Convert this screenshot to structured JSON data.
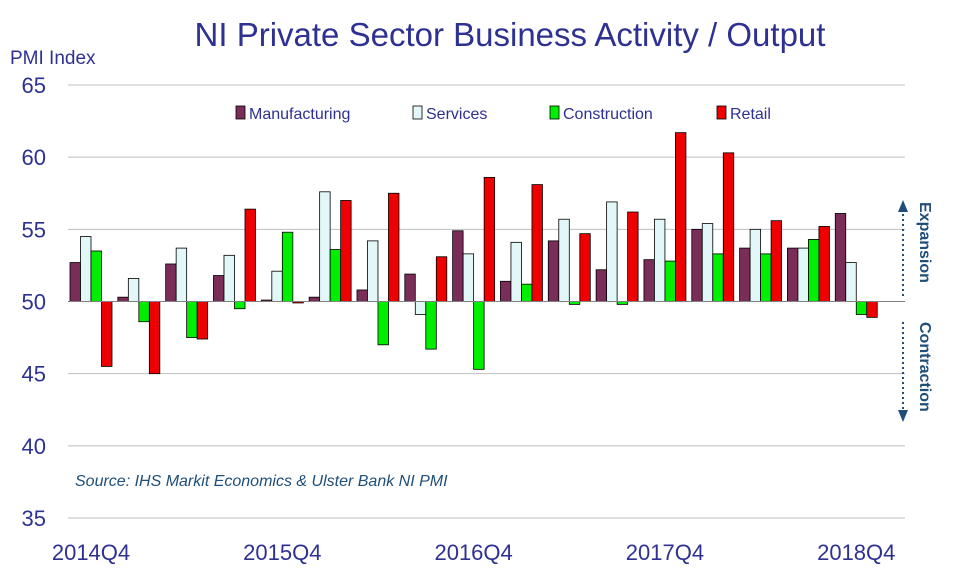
{
  "chart_data": {
    "type": "bar",
    "title": "NI Private Sector Business Activity / Output",
    "ylabel": "PMI Index",
    "ylim": [
      35,
      65
    ],
    "yticks": [
      35,
      40,
      45,
      50,
      55,
      60,
      65
    ],
    "baseline": 50,
    "categories": [
      "2014Q4",
      "2015Q1",
      "2015Q2",
      "2015Q3",
      "2015Q4",
      "2016Q1",
      "2016Q2",
      "2016Q3",
      "2016Q4",
      "2017Q1",
      "2017Q2",
      "2017Q3",
      "2017Q4",
      "2018Q1",
      "2018Q2",
      "2018Q3",
      "2018Q4"
    ],
    "x_tick_labels": [
      "2014Q4",
      "2015Q4",
      "2016Q4",
      "2017Q4",
      "2018Q4"
    ],
    "series": [
      {
        "name": "Manufacturing",
        "color": "#7b2d5a",
        "values": [
          52.7,
          50.3,
          52.6,
          51.8,
          50.1,
          50.3,
          50.8,
          51.9,
          54.9,
          51.4,
          54.2,
          52.2,
          52.9,
          55.0,
          53.7,
          53.7,
          56.1
        ]
      },
      {
        "name": "Services",
        "color": "#e2f7f7",
        "values": [
          54.5,
          51.6,
          53.7,
          53.2,
          52.1,
          57.6,
          54.2,
          49.1,
          53.3,
          54.1,
          55.7,
          56.9,
          55.7,
          55.4,
          55.0,
          53.7,
          52.7
        ]
      },
      {
        "name": "Construction",
        "color": "#00ee00",
        "values": [
          53.5,
          48.6,
          47.5,
          49.5,
          54.8,
          53.6,
          47.0,
          46.7,
          45.3,
          51.2,
          49.8,
          49.8,
          52.8,
          53.3,
          53.3,
          54.3,
          49.1
        ]
      },
      {
        "name": "Retail",
        "color": "#ee0000",
        "values": [
          45.5,
          45.0,
          47.4,
          56.4,
          49.9,
          57.0,
          57.5,
          53.1,
          58.6,
          58.1,
          54.7,
          56.2,
          61.7,
          60.3,
          55.6,
          55.2,
          48.9
        ]
      }
    ],
    "legend_position": "top",
    "grid": true,
    "annotations": {
      "source": "Source: IHS Markit Economics & Ulster Bank NI PMI",
      "expansion": "Expansion",
      "contraction": "Contraction"
    }
  }
}
